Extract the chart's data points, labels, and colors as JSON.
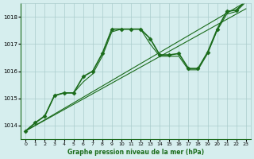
{
  "title": "Graphe pression niveau de la mer (hPa)",
  "background_color": "#d6eeee",
  "grid_color": "#aacccc",
  "line_color": "#1a6b1a",
  "x_ticks": [
    0,
    1,
    2,
    3,
    4,
    5,
    6,
    7,
    8,
    9,
    10,
    11,
    12,
    13,
    14,
    15,
    16,
    17,
    18,
    19,
    20,
    21,
    22,
    23
  ],
  "y_ticks": [
    1014,
    1015,
    1016,
    1017,
    1018
  ],
  "ylim": [
    1013.5,
    1018.5
  ],
  "xlim": [
    -0.5,
    23.5
  ],
  "series": [
    {
      "x": [
        0,
        1,
        2,
        3,
        4,
        5,
        6,
        7,
        8,
        9,
        10,
        11,
        12,
        13,
        14,
        15,
        16,
        17,
        18,
        19,
        20,
        21,
        22,
        23
      ],
      "y": [
        1013.8,
        1014.1,
        1014.35,
        1015.1,
        1015.2,
        1015.2,
        1015.8,
        1016.0,
        1016.65,
        1017.55,
        1017.55,
        1017.55,
        1017.55,
        1017.2,
        1016.6,
        1016.6,
        1016.65,
        1016.1,
        1016.1,
        1016.7,
        1017.55,
        1018.2,
        1018.25,
        1018.6
      ],
      "marker": "D",
      "markersize": 2.5,
      "linewidth": 1.2
    },
    {
      "x": [
        0,
        1,
        2,
        3,
        4,
        5,
        6,
        7,
        8,
        9,
        10,
        11,
        12,
        13,
        14,
        15,
        16,
        17,
        18,
        19,
        20,
        21,
        22,
        23
      ],
      "y": [
        1013.8,
        1014.1,
        1014.35,
        1015.1,
        1015.2,
        1015.2,
        1015.6,
        1015.9,
        1016.55,
        1017.45,
        1017.55,
        1017.55,
        1017.55,
        1017.0,
        1016.55,
        1016.55,
        1016.55,
        1016.05,
        1016.05,
        1016.65,
        1017.5,
        1018.1,
        1018.2,
        1018.55
      ],
      "marker": null,
      "markersize": 0,
      "linewidth": 0.8
    },
    {
      "x": [
        0,
        23
      ],
      "y": [
        1013.8,
        1018.55
      ],
      "marker": null,
      "markersize": 0,
      "linewidth": 0.8
    },
    {
      "x": [
        0,
        23
      ],
      "y": [
        1013.8,
        1018.3
      ],
      "marker": null,
      "markersize": 0,
      "linewidth": 0.8
    }
  ]
}
